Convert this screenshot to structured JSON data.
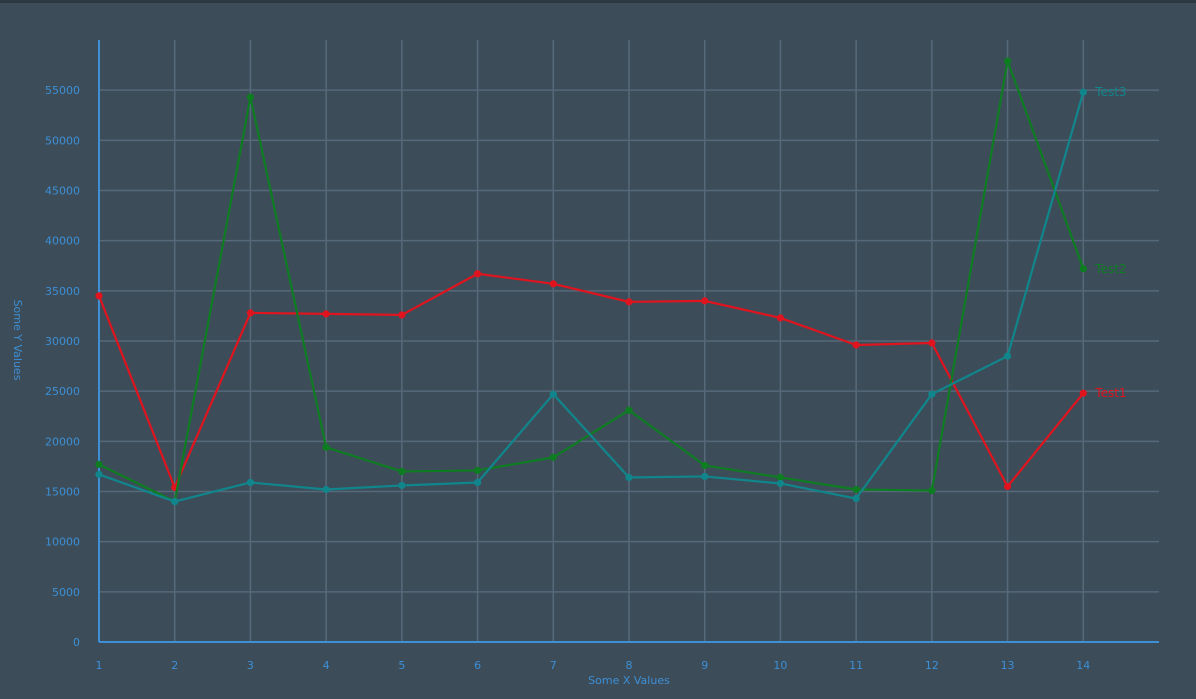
{
  "chart_data": {
    "type": "line",
    "title": "",
    "xlabel": "Some X Values",
    "ylabel": "Some Y Values",
    "x": [
      1,
      2,
      3,
      4,
      5,
      6,
      7,
      8,
      9,
      10,
      11,
      12,
      13,
      14
    ],
    "xlim": [
      1,
      15
    ],
    "ylim": [
      0,
      60000
    ],
    "yticks": [
      0,
      5000,
      10000,
      15000,
      20000,
      25000,
      30000,
      35000,
      40000,
      45000,
      50000,
      55000
    ],
    "grid": true,
    "legend": "inline labels at end of each series",
    "series": [
      {
        "name": "Test1",
        "color": "#e0141e",
        "values": [
          34500,
          15400,
          32800,
          32700,
          32600,
          36700,
          35700,
          33900,
          34000,
          32300,
          29600,
          29800,
          15500,
          24800
        ]
      },
      {
        "name": "Test2",
        "color": "#0e7d22",
        "values": [
          17700,
          14000,
          54300,
          19400,
          17000,
          17100,
          18400,
          23100,
          17600,
          16400,
          15200,
          15100,
          57900,
          37200
        ]
      },
      {
        "name": "Test3",
        "color": "#10868c",
        "values": [
          16700,
          14000,
          15900,
          15200,
          15600,
          15900,
          24700,
          16400,
          16500,
          15800,
          14300,
          24700,
          28500,
          54800
        ]
      }
    ]
  },
  "colors": {
    "background": "#3c4d59",
    "axis": "#3d8fd6",
    "grid": "#56697a",
    "tick_label": "#3d8fd6"
  }
}
